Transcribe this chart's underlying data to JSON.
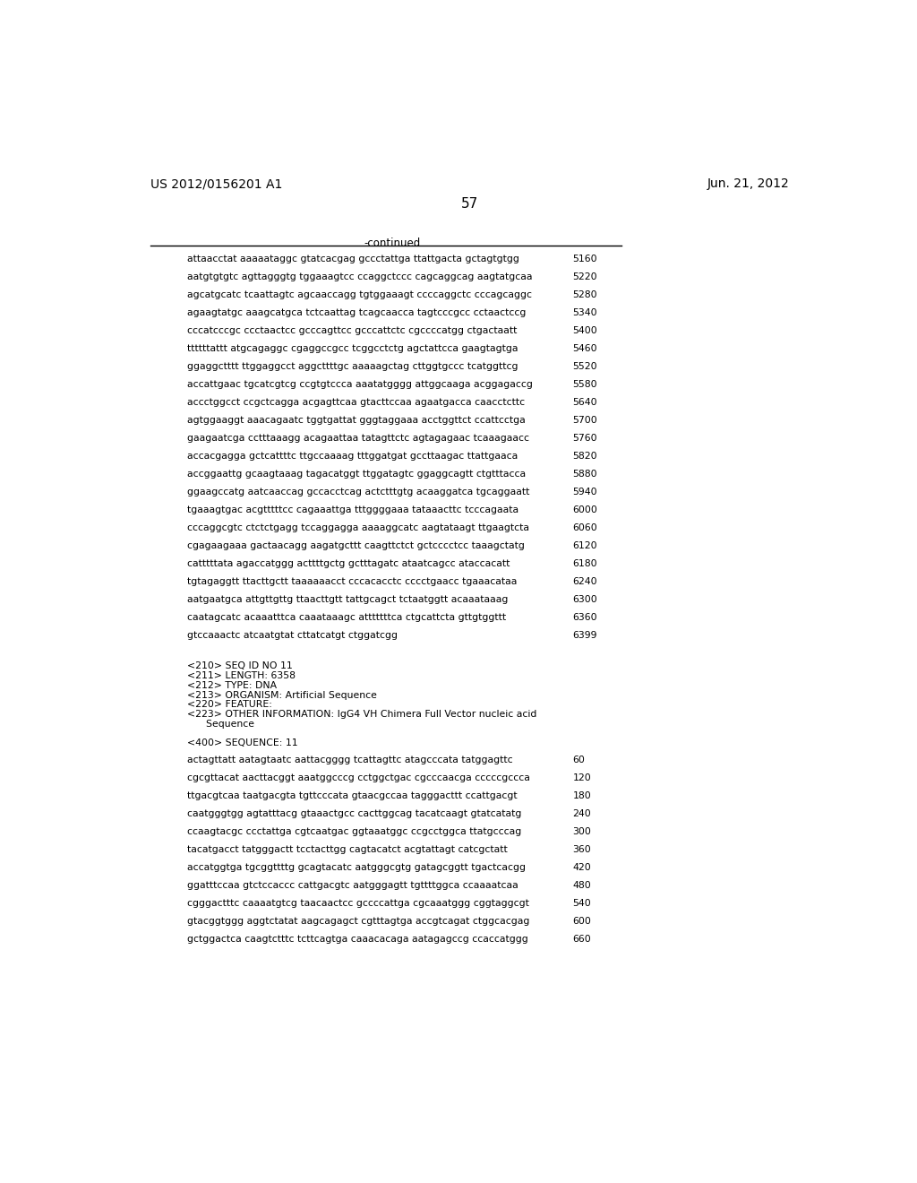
{
  "left_header": "US 2012/0156201 A1",
  "right_header": "Jun. 21, 2012",
  "page_number": "57",
  "continued_label": "-continued",
  "bg_color": "#ffffff",
  "text_color": "#000000",
  "sequence_lines": [
    [
      "attaacctat aaaaataggc gtatcacgag gccctattga ttattgacta gctagtgtgg",
      "5160"
    ],
    [
      "aatgtgtgtc agttagggtg tggaaagtcc ccaggctccc cagcaggcag aagtatgcaa",
      "5220"
    ],
    [
      "agcatgcatc tcaattagtc agcaaccagg tgtggaaagt ccccaggctc cccagcaggc",
      "5280"
    ],
    [
      "agaagtatgc aaagcatgca tctcaattag tcagcaacca tagtcccgcc cctaactccg",
      "5340"
    ],
    [
      "cccatcccgc ccctaactcc gcccagttcc gcccattctc cgccccatgg ctgactaatt",
      "5400"
    ],
    [
      "ttttttattt atgcagaggc cgaggccgcc tcggcctctg agctattcca gaagtagtga",
      "5460"
    ],
    [
      "ggaggctttt ttggaggcct aggcttttgc aaaaagctag cttggtgccc tcatggttcg",
      "5520"
    ],
    [
      "accattgaac tgcatcgtcg ccgtgtccca aaatatgggg attggcaaga acggagaccg",
      "5580"
    ],
    [
      "accctggcct ccgctcagga acgagttcaa gtacttccaa agaatgacca caacctcttc",
      "5640"
    ],
    [
      "agtggaaggt aaacagaatc tggtgattat gggtaggaaa acctggttct ccattcctga",
      "5700"
    ],
    [
      "gaagaatcga cctttaaagg acagaattaa tatagttctc agtagagaac tcaaagaacc",
      "5760"
    ],
    [
      "accacgagga gctcattttc ttgccaaaag tttggatgat gccttaagac ttattgaaca",
      "5820"
    ],
    [
      "accggaattg gcaagtaaag tagacatggt ttggatagtc ggaggcagtt ctgtttacca",
      "5880"
    ],
    [
      "ggaagccatg aatcaaccag gccacctcag actctttgtg acaaggatca tgcaggaatt",
      "5940"
    ],
    [
      "tgaaagtgac acgtttttcc cagaaattga tttggggaaa tataaacttc tcccagaata",
      "6000"
    ],
    [
      "cccaggcgtc ctctctgagg tccaggagga aaaaggcatc aagtataagt ttgaagtcta",
      "6060"
    ],
    [
      "cgagaagaaa gactaacagg aagatgcttt caagttctct gctcccctcc taaagctatg",
      "6120"
    ],
    [
      "catttttata agaccatggg acttttgctg gctttagatc ataatcagcc ataccacatt",
      "6180"
    ],
    [
      "tgtagaggtt ttacttgctt taaaaaacct cccacacctc cccctgaacc tgaaacataa",
      "6240"
    ],
    [
      "aatgaatgca attgttgttg ttaacttgtt tattgcagct tctaatggtt acaaataaag",
      "6300"
    ],
    [
      "caatagcatc acaaatttca caaataaagc atttttttca ctgcattcta gttgtggttt",
      "6360"
    ],
    [
      "gtccaaactc atcaatgtat cttatcatgt ctggatcgg",
      "6399"
    ]
  ],
  "metadata_lines": [
    "<210> SEQ ID NO 11",
    "<211> LENGTH: 6358",
    "<212> TYPE: DNA",
    "<213> ORGANISM: Artificial Sequence",
    "<220> FEATURE:",
    "<223> OTHER INFORMATION: IgG4 VH Chimera Full Vector nucleic acid",
    "      Sequence"
  ],
  "sequence_label": "<400> SEQUENCE: 11",
  "sequence_lines2": [
    [
      "actagttatt aatagtaatc aattacgggg tcattagttc atagcccata tatggagttc",
      "60"
    ],
    [
      "cgcgttacat aacttacggt aaatggcccg cctggctgac cgcccaacga cccccgccca",
      "120"
    ],
    [
      "ttgacgtcaa taatgacgta tgttcccata gtaacgccaa tagggacttt ccattgacgt",
      "180"
    ],
    [
      "caatgggtgg agtatttacg gtaaactgcc cacttggcag tacatcaagt gtatcatatg",
      "240"
    ],
    [
      "ccaagtacgc ccctattga cgtcaatgac ggtaaatggc ccgcctggca ttatgcccag",
      "300"
    ],
    [
      "tacatgacct tatgggactt tcctacttgg cagtacatct acgtattagt catcgctatt",
      "360"
    ],
    [
      "accatggtga tgcggttttg gcagtacatc aatgggcgtg gatagcggtt tgactcacgg",
      "420"
    ],
    [
      "ggatttccaa gtctccaccc cattgacgtc aatgggagtt tgttttggca ccaaaatcaa",
      "480"
    ],
    [
      "cgggactttc caaaatgtcg taacaactcc gccccattga cgcaaatggg cggtaggcgt",
      "540"
    ],
    [
      "gtacggtggg aggtctatat aagcagagct cgtttagtga accgtcagat ctggcacgag",
      "600"
    ],
    [
      "gctggactca caagtctttc tcttcagtga caaacacaga aatagagccg ccaccatggg",
      "660"
    ]
  ]
}
